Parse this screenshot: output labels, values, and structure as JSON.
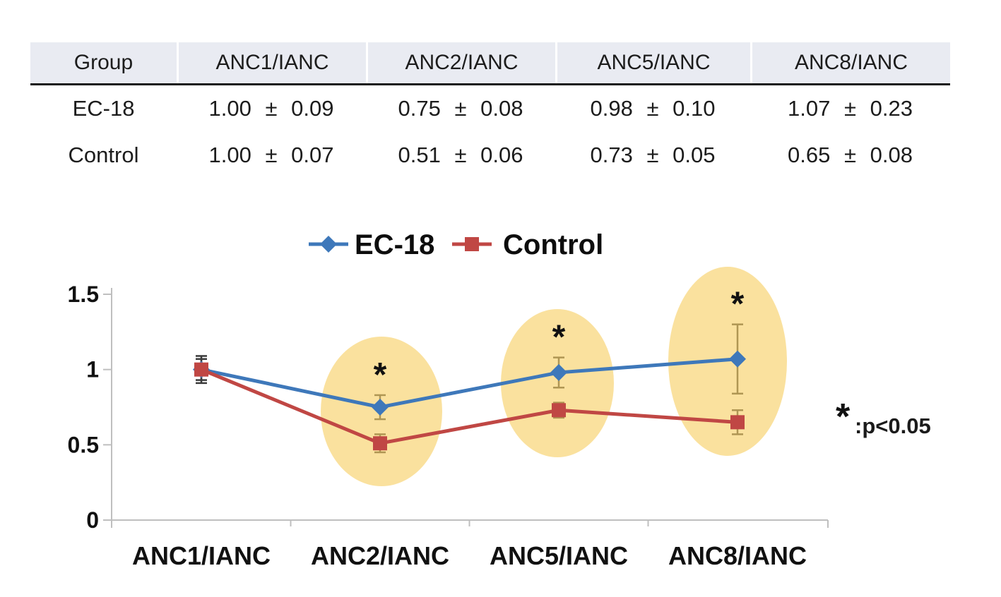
{
  "table": {
    "columns": [
      "Group",
      "ANC1/IANC",
      "ANC2/IANC",
      "ANC5/IANC",
      "ANC8/IANC"
    ],
    "rows": [
      {
        "group": "EC-18",
        "values": [
          "1.00 ± 0.09",
          "0.75 ± 0.08",
          "0.98 ± 0.10",
          "1.07 ± 0.23"
        ]
      },
      {
        "group": "Control",
        "values": [
          "1.00 ± 0.07",
          "0.51 ± 0.06",
          "0.73 ± 0.05",
          "0.65 ± 0.08"
        ]
      }
    ]
  },
  "chart_data": {
    "type": "line",
    "title": "",
    "xlabel": "",
    "ylabel": "",
    "categories": [
      "ANC1/IANC",
      "ANC2/IANC",
      "ANC5/IANC",
      "ANC8/IANC"
    ],
    "series": [
      {
        "name": "EC-18",
        "marker": "diamond",
        "color": "#3E78BA",
        "values": [
          1.0,
          0.75,
          0.98,
          1.07
        ],
        "errors": [
          0.09,
          0.08,
          0.1,
          0.23
        ]
      },
      {
        "name": "Control",
        "marker": "square",
        "color": "#C04744",
        "values": [
          1.0,
          0.51,
          0.73,
          0.65
        ],
        "errors": [
          0.07,
          0.06,
          0.05,
          0.08
        ]
      }
    ],
    "ylim": [
      0,
      1.5
    ],
    "yticks": [
      0,
      0.5,
      1,
      1.5
    ],
    "grid": false,
    "legend_position": "top",
    "highlighted_categories": [
      1,
      2,
      3
    ],
    "highlight_color": "#F7CE63",
    "significance_symbol": "*",
    "annotation": {
      "symbol": "*",
      "text": ":p<0.05"
    },
    "error_bar_color": "#3A3A3A",
    "axis_color": "#BFBFBF"
  }
}
